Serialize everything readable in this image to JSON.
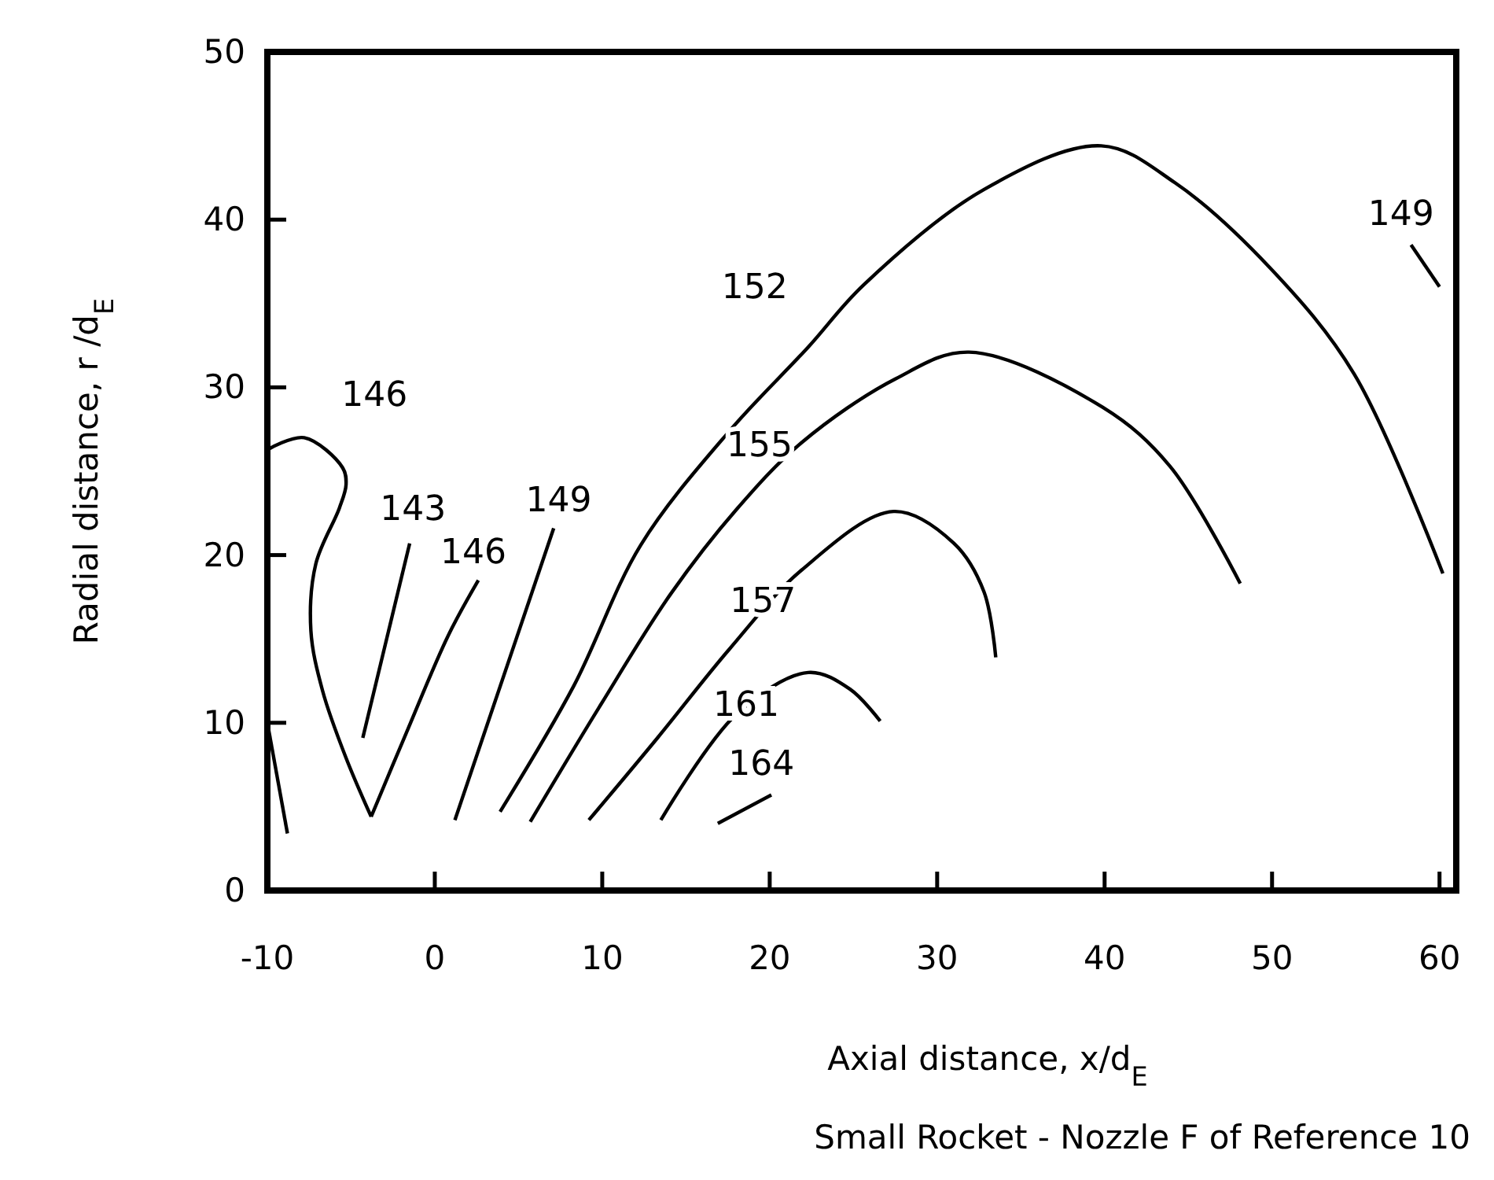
{
  "chart_data": {
    "type": "line",
    "xlabel": "Axial distance, x/d$_{E}$",
    "ylabel": "Radial distance, r /d$_{E}$",
    "xlim": [
      -10,
      61
    ],
    "ylim": [
      0,
      50
    ],
    "xticks": [
      -10,
      0,
      10,
      20,
      30,
      40,
      50,
      60
    ],
    "yticks": [
      0,
      10,
      20,
      30,
      40,
      50
    ],
    "grid": false,
    "legend": false,
    "marker": "none",
    "line_style": "solid",
    "series": [
      {
        "name": "146",
        "color": "#000000",
        "x": [
          -9.96,
          -7.8,
          -5.5,
          -5.3,
          -5.7,
          -7.1,
          -7.4,
          -6.7,
          -5.3,
          -3.8
        ],
        "values": [
          26.3,
          27.0,
          25.2,
          24.2,
          22.8,
          19.5,
          15.5,
          11.9,
          7.9,
          4.4
        ]
      },
      {
        "name": "146",
        "color": "#000000",
        "x": [
          -3.8,
          -1.7,
          0.8,
          2.6
        ],
        "values": [
          4.4,
          9.4,
          15.2,
          18.5
        ]
      },
      {
        "color": "#000000",
        "x": [
          -9.96,
          -8.8
        ],
        "values": [
          9.8,
          3.4
        ]
      },
      {
        "name": "143",
        "color": "#000000",
        "x": [
          -4.3,
          -1.5
        ],
        "values": [
          9.1,
          20.7
        ]
      },
      {
        "name": "149",
        "color": "#000000",
        "x": [
          1.2,
          7.1
        ],
        "values": [
          4.2,
          21.6
        ]
      },
      {
        "name": "152",
        "color": "#000000",
        "x": [
          3.9,
          8.3,
          12.3,
          17.6,
          22.3,
          25.6,
          32.8,
          39.8,
          44.2,
          49.9,
          54.9,
          60.2
        ],
        "values": [
          4.7,
          12.2,
          20.6,
          27.4,
          32.4,
          36.1,
          41.8,
          44.4,
          42.2,
          37.1,
          30.8,
          18.9
        ]
      },
      {
        "name": "155",
        "color": "#000000",
        "x": [
          5.7,
          9.8,
          14.1,
          18.0,
          21.9,
          27.5,
          31.9,
          39.9,
          43.9,
          48.1
        ],
        "values": [
          4.1,
          10.9,
          17.7,
          22.7,
          26.7,
          30.5,
          32.1,
          28.8,
          25.3,
          18.3
        ]
      },
      {
        "name": "157",
        "color": "#000000",
        "x": [
          9.2,
          13.3,
          17.6,
          21.9,
          27.4,
          31.0,
          32.8,
          33.5
        ],
        "values": [
          4.2,
          9.1,
          14.4,
          19.1,
          22.6,
          20.7,
          17.8,
          13.9
        ]
      },
      {
        "name": "161",
        "color": "#000000",
        "x": [
          13.5,
          18.0,
          22.3,
          24.8,
          26.6
        ],
        "values": [
          4.2,
          10.5,
          13.0,
          12.0,
          10.1
        ]
      },
      {
        "name": "164",
        "color": "#000000",
        "x": [
          16.9,
          20.1
        ],
        "values": [
          4.0,
          5.7
        ]
      },
      {
        "name": "149",
        "color": "#000000",
        "x": [
          58.3,
          60.0
        ],
        "values": [
          38.5,
          36.0
        ]
      }
    ],
    "annotations": [
      "Small Rocket - Nozzle F of Reference 10"
    ]
  }
}
